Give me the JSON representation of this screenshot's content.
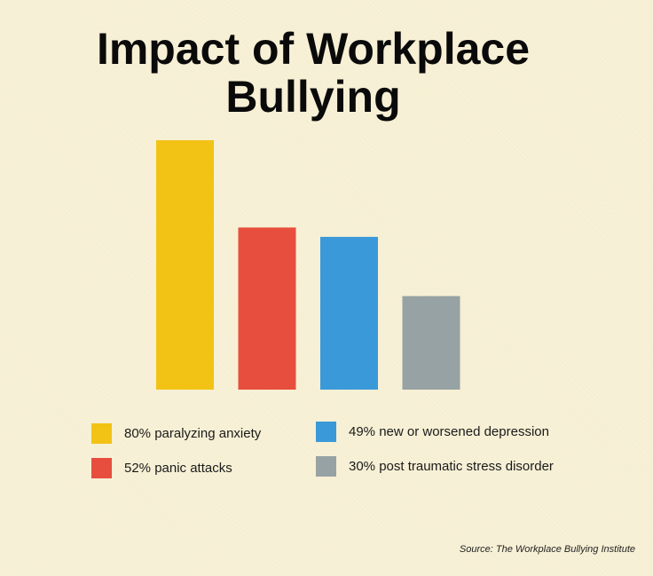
{
  "title_line1": "Impact of Workplace",
  "title_line2": "Bullying",
  "source": "Source: The Workplace Bullying Institute",
  "chart_data": {
    "type": "bar",
    "title": "Impact of Workplace Bullying",
    "categories": [
      "80% paralyzing anxiety",
      "52% panic attacks",
      "49% new or worsened depression",
      "30% post traumatic stress disorder"
    ],
    "values": [
      80,
      52,
      49,
      30
    ],
    "colors": [
      "#f2c315",
      "#e84e3d",
      "#3a99d9",
      "#97a2a4"
    ],
    "ylim": [
      0,
      80
    ],
    "grid": false,
    "legend_placement": "bottom"
  },
  "legend": [
    {
      "label": "80% paralyzing anxiety",
      "color": "#f2c315"
    },
    {
      "label": "52% panic attacks",
      "color": "#e84e3d"
    },
    {
      "label": "49% new or worsened depression",
      "color": "#3a99d9"
    },
    {
      "label": "30% post traumatic stress disorder",
      "color": "#97a2a4"
    }
  ]
}
